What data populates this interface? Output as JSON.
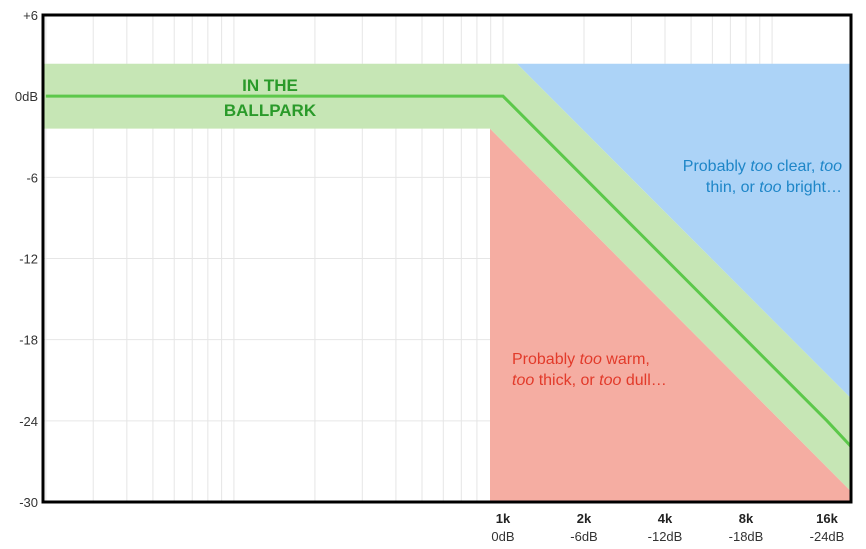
{
  "chart_data": {
    "type": "line",
    "title": "",
    "xlabel": "",
    "ylabel": "",
    "x_scale": "log2",
    "x_ticks": [
      {
        "freq": 1000,
        "label": "1k",
        "sublabel": "0dB"
      },
      {
        "freq": 2000,
        "label": "2k",
        "sublabel": "-6dB"
      },
      {
        "freq": 4000,
        "label": "4k",
        "sublabel": "-12dB"
      },
      {
        "freq": 8000,
        "label": "8k",
        "sublabel": "-18dB"
      },
      {
        "freq": 16000,
        "label": "16k",
        "sublabel": "-24dB"
      }
    ],
    "y_ticks": [
      "+6",
      "0dB",
      "-6",
      "-12",
      "-18",
      "-24",
      "-30"
    ],
    "ylim": [
      -30,
      6
    ],
    "series": [
      {
        "x": [
          20,
          1000,
          2000,
          4000,
          8000,
          16000,
          20000
        ],
        "y": [
          0,
          0,
          -6,
          -12,
          -18,
          -24,
          -25.9
        ]
      }
    ],
    "regions": [
      {
        "key": "ballpark",
        "text_lines": [
          "IN THE",
          "BALLPARK"
        ]
      },
      {
        "key": "bright",
        "text_lines": [
          "Probably ",
          "too",
          " clear, ",
          "too",
          "thin, or ",
          "too",
          " bright…"
        ]
      },
      {
        "key": "warm",
        "text_lines": [
          "Probably ",
          "too",
          " warm,",
          "too",
          " thick, or ",
          "too",
          " dull…"
        ]
      }
    ],
    "grid": true,
    "colors": {
      "line": "#5cc84a",
      "band": "#c6e6b5",
      "bright_region": "#acd3f7",
      "warm_region": "#f5ada2",
      "bright_text": "#1e86c8",
      "warm_text": "#e23a2a",
      "ballpark_text": "#2a9a2a",
      "grid": "#e6e6e6",
      "frame": "#000000"
    }
  }
}
